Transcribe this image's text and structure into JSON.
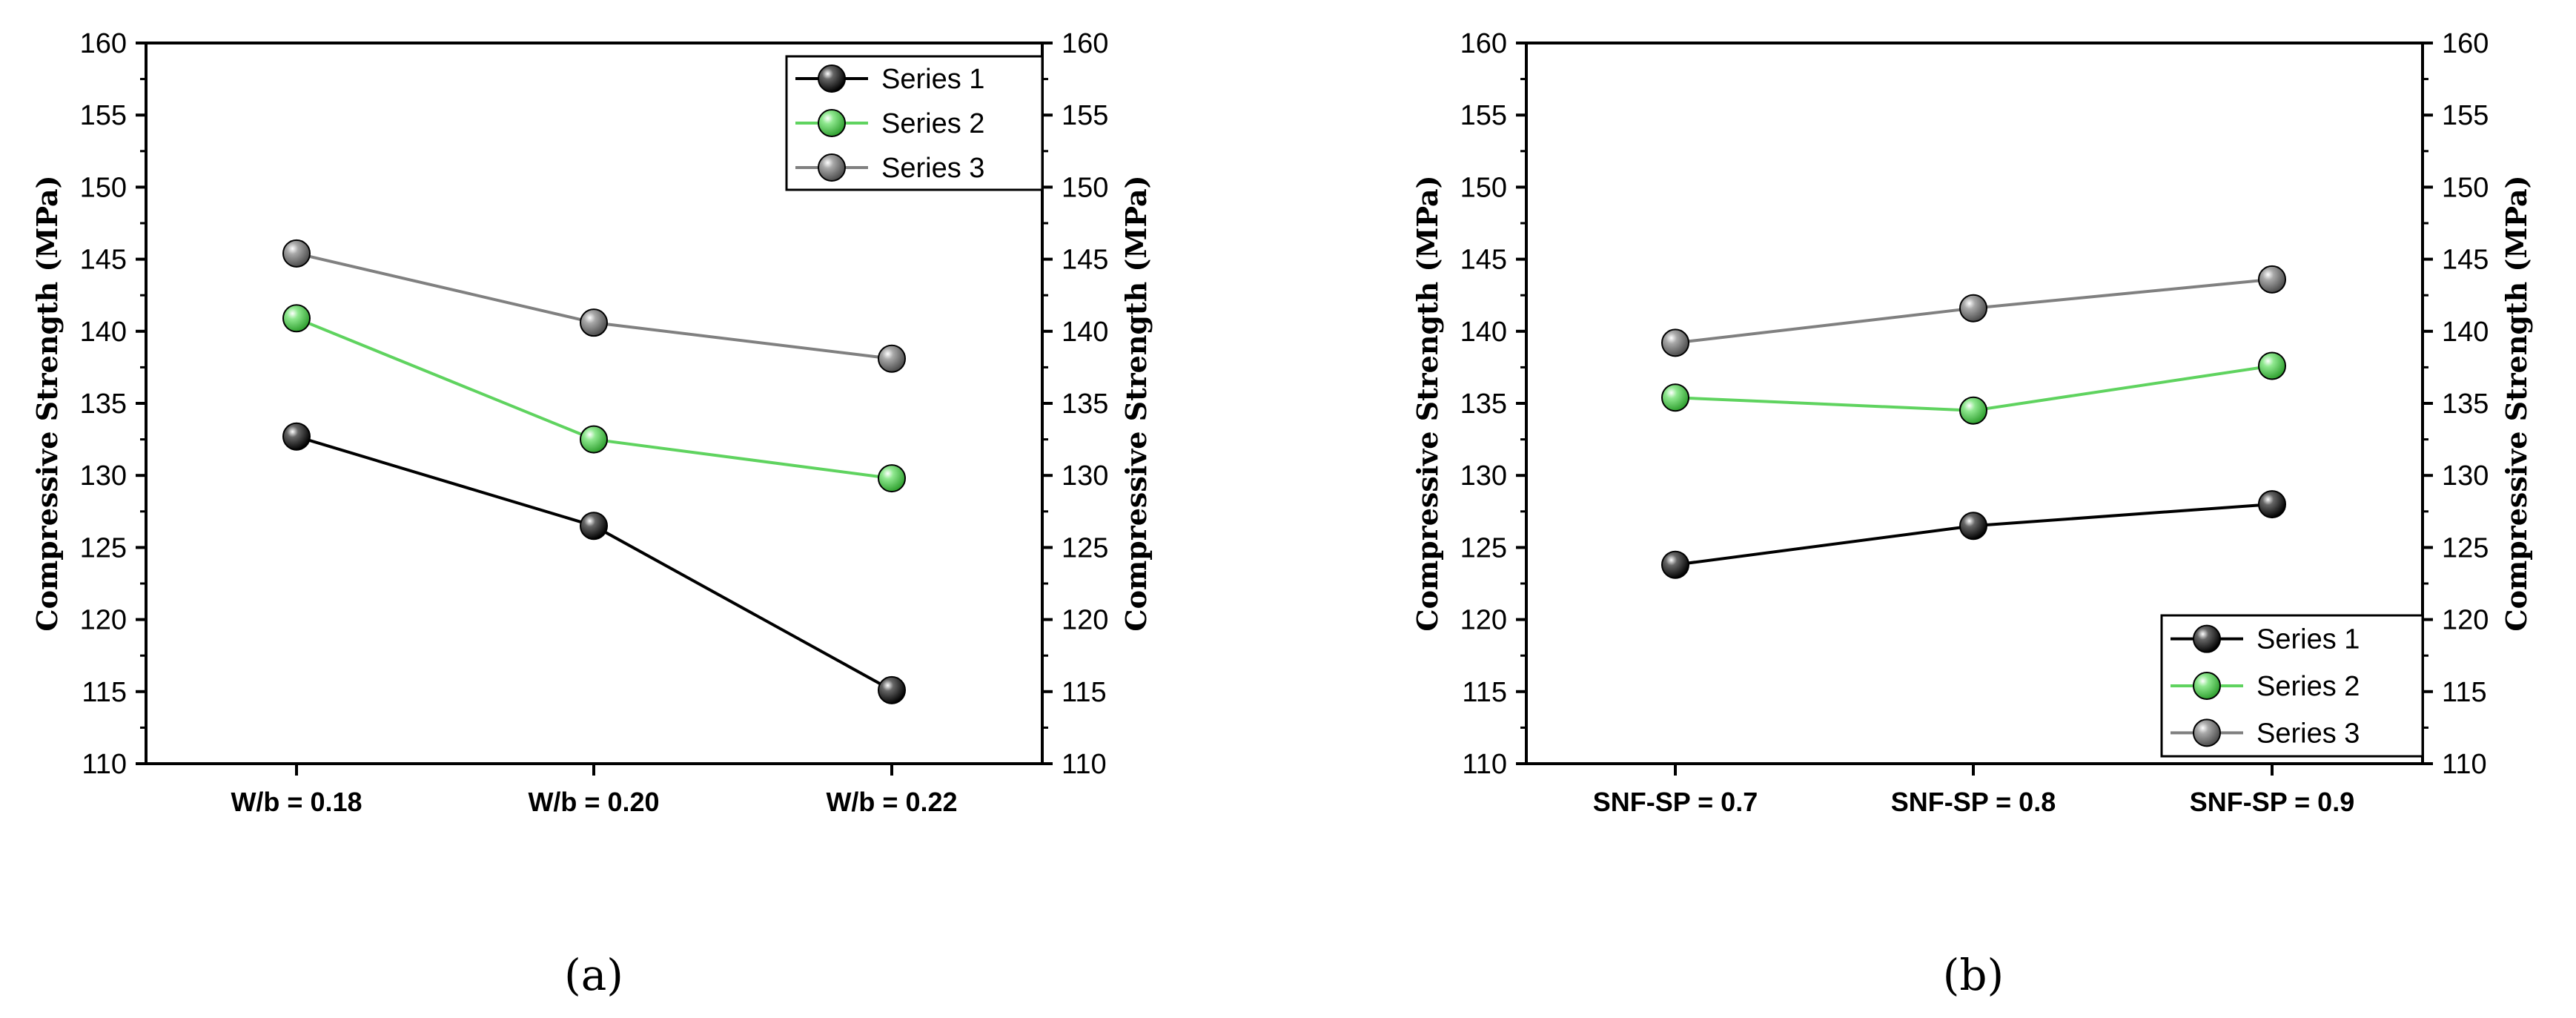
{
  "chart_data": [
    {
      "type": "line",
      "panel_label": "(a)",
      "categories": [
        "W/b = 0.18",
        "W/b = 0.20",
        "W/b = 0.22"
      ],
      "series": [
        {
          "name": "Series 1",
          "values": [
            132.7,
            126.5,
            115.1
          ],
          "color": "#000000"
        },
        {
          "name": "Series 2",
          "values": [
            140.9,
            132.5,
            129.8
          ],
          "color": "#5fd35f"
        },
        {
          "name": "Series 3",
          "values": [
            145.4,
            140.6,
            138.1
          ],
          "color": "#808080"
        }
      ],
      "ylabel": "Compressive Strength (MPa)",
      "ylabel_right": "Compressive Strength (MPa)",
      "ylim": [
        110,
        160
      ],
      "yticks": [
        110,
        115,
        120,
        125,
        130,
        135,
        140,
        145,
        150,
        155,
        160
      ],
      "legend": "top-right",
      "grid": false
    },
    {
      "type": "line",
      "panel_label": "(b)",
      "categories": [
        "SNF-SP = 0.7",
        "SNF-SP = 0.8",
        "SNF-SP = 0.9"
      ],
      "series": [
        {
          "name": "Series 1",
          "values": [
            123.8,
            126.5,
            128.0
          ],
          "color": "#000000"
        },
        {
          "name": "Series 2",
          "values": [
            135.4,
            134.5,
            137.6
          ],
          "color": "#5fd35f"
        },
        {
          "name": "Series 3",
          "values": [
            139.2,
            141.6,
            143.6
          ],
          "color": "#808080"
        }
      ],
      "ylabel": "Compressive Strength (MPa)",
      "ylabel_right": "Compressive Strength (MPa)",
      "ylim": [
        110,
        160
      ],
      "yticks": [
        110,
        115,
        120,
        125,
        130,
        135,
        140,
        145,
        150,
        155,
        160
      ],
      "legend": "bottom-right",
      "grid": false
    }
  ]
}
